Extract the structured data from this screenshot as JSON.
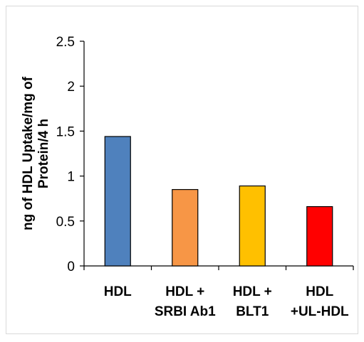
{
  "chart_data": {
    "type": "bar",
    "categories": [
      [
        "HDL"
      ],
      [
        "HDL +",
        "SRBI Ab1"
      ],
      [
        "HDL +",
        "BLT1"
      ],
      [
        "HDL",
        "+UL-HDL"
      ]
    ],
    "values": [
      1.44,
      0.85,
      0.89,
      0.66
    ],
    "bar_colors": [
      "#4f81bd",
      "#f79646",
      "#ffc000",
      "#ff0000"
    ],
    "ylabel": [
      "ng of HDL Uptake/mg of",
      "Protein/4 h"
    ],
    "ylim": [
      0,
      2.5
    ],
    "yticks": [
      "0",
      "0.5",
      "1",
      "1.5",
      "2",
      "2.5"
    ],
    "grid": false,
    "legend": "none"
  }
}
